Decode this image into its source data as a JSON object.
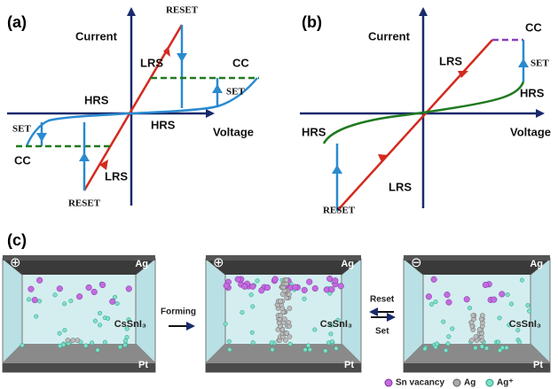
{
  "panel_a": {
    "label": "(a)",
    "y_axis": "Current",
    "x_axis": "Voltage",
    "reset_top": "RESET",
    "reset_bottom": "RESET",
    "lrs_top": "LRS",
    "lrs_bottom": "LRS",
    "hrs_left": "HRS",
    "hrs_right": "HRS",
    "set_right": "SET",
    "set_left": "SET",
    "cc_right": "CC",
    "cc_left": "CC"
  },
  "panel_b": {
    "label": "(b)",
    "y_axis": "Current",
    "x_axis": "Voltage",
    "cc": "CC",
    "set": "SET",
    "hrs_right": "HRS",
    "hrs_left": "HRS",
    "lrs_top": "LRS",
    "lrs_bottom": "LRS",
    "reset": "RESET"
  },
  "panel_c": {
    "label": "(c)",
    "devices": [
      {
        "polarity": "⊕",
        "top": "Ag",
        "layer": "CsSnI₃",
        "bottom": "Pt"
      },
      {
        "polarity": "⊕",
        "top": "Ag",
        "layer": "CsSnI₃",
        "bottom": "Pt"
      },
      {
        "polarity": "⊖",
        "top": "Ag",
        "layer": "CsSnI₃",
        "bottom": "Pt"
      }
    ],
    "forming": "Forming",
    "reset": "Reset",
    "set": "Set",
    "legend": [
      "Sn vacancy",
      "Ag",
      "Ag⁺"
    ]
  }
}
